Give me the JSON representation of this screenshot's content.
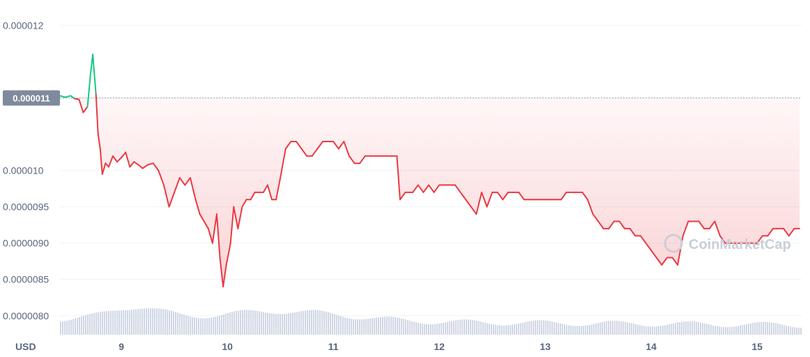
{
  "chart_data": {
    "type": "line",
    "unit": "USD",
    "watermark": "CoinMarketCap",
    "reference_label": "0.000011",
    "reference_value": 1.1e-05,
    "ylim": [
      7.95e-06,
      1.21e-05
    ],
    "xlim": [
      8.42,
      15.42
    ],
    "y_ticks": [
      {
        "label": "0.000012",
        "value": 1.2e-05
      },
      {
        "label": "0.000011",
        "value": 1.1e-05
      },
      {
        "label": "0.000010",
        "value": 1e-05
      },
      {
        "label": "0.0000095",
        "value": 9.5e-06
      },
      {
        "label": "0.0000090",
        "value": 9e-06
      },
      {
        "label": "0.0000085",
        "value": 8.5e-06
      },
      {
        "label": "0.0000080",
        "value": 8e-06
      }
    ],
    "x_ticks": [
      {
        "label": "9",
        "value": 9
      },
      {
        "label": "10",
        "value": 10
      },
      {
        "label": "11",
        "value": 11
      },
      {
        "label": "12",
        "value": 12
      },
      {
        "label": "13",
        "value": 13
      },
      {
        "label": "14",
        "value": 14
      },
      {
        "label": "15",
        "value": 15
      }
    ],
    "colors": {
      "up": "#16c784",
      "down": "#ea3943",
      "volume": "#cfd6e4",
      "grid": "#eff2f5",
      "text": "#58667e"
    },
    "series": [
      {
        "values": [
          [
            8.42,
            1.103e-05
          ],
          [
            8.47,
            1.101e-05
          ],
          [
            8.52,
            1.103e-05
          ],
          [
            8.56,
            1.099e-05
          ],
          [
            8.6,
            1.098e-05
          ],
          [
            8.64,
            1.08e-05
          ],
          [
            8.68,
            1.088e-05
          ],
          [
            8.71,
            1.135e-05
          ],
          [
            8.73,
            1.16e-05
          ],
          [
            8.76,
            1.105e-05
          ],
          [
            8.78,
            1.05e-05
          ],
          [
            8.8,
            1.03e-05
          ],
          [
            8.82,
            9.95e-06
          ],
          [
            8.85,
            1.01e-05
          ],
          [
            8.88,
            1.005e-05
          ],
          [
            8.92,
            1.02e-05
          ],
          [
            8.96,
            1.012e-05
          ],
          [
            9.0,
            1.018e-05
          ],
          [
            9.04,
            1.025e-05
          ],
          [
            9.08,
            1.005e-05
          ],
          [
            9.12,
            1.012e-05
          ],
          [
            9.16,
            1.008e-05
          ],
          [
            9.2,
            1.003e-05
          ],
          [
            9.25,
            1.008e-05
          ],
          [
            9.3,
            1.01e-05
          ],
          [
            9.35,
            1e-05
          ],
          [
            9.4,
            9.8e-06
          ],
          [
            9.45,
            9.5e-06
          ],
          [
            9.5,
            9.7e-06
          ],
          [
            9.55,
            9.9e-06
          ],
          [
            9.6,
            9.8e-06
          ],
          [
            9.65,
            9.9e-06
          ],
          [
            9.7,
            9.6e-06
          ],
          [
            9.74,
            9.4e-06
          ],
          [
            9.78,
            9.3e-06
          ],
          [
            9.82,
            9.2e-06
          ],
          [
            9.86,
            9e-06
          ],
          [
            9.9,
            9.4e-06
          ],
          [
            9.93,
            8.8e-06
          ],
          [
            9.96,
            8.4e-06
          ],
          [
            9.99,
            8.7e-06
          ],
          [
            10.03,
            9e-06
          ],
          [
            10.06,
            9.5e-06
          ],
          [
            10.1,
            9.2e-06
          ],
          [
            10.14,
            9.5e-06
          ],
          [
            10.18,
            9.6e-06
          ],
          [
            10.22,
            9.6e-06
          ],
          [
            10.26,
            9.7e-06
          ],
          [
            10.3,
            9.7e-06
          ],
          [
            10.34,
            9.7e-06
          ],
          [
            10.38,
            9.8e-06
          ],
          [
            10.42,
            9.6e-06
          ],
          [
            10.46,
            9.6e-06
          ],
          [
            10.5,
            9.9e-06
          ],
          [
            10.55,
            1.03e-05
          ],
          [
            10.6,
            1.04e-05
          ],
          [
            10.65,
            1.04e-05
          ],
          [
            10.7,
            1.03e-05
          ],
          [
            10.75,
            1.02e-05
          ],
          [
            10.8,
            1.02e-05
          ],
          [
            10.85,
            1.03e-05
          ],
          [
            10.9,
            1.04e-05
          ],
          [
            10.95,
            1.04e-05
          ],
          [
            11.0,
            1.04e-05
          ],
          [
            11.05,
            1.03e-05
          ],
          [
            11.1,
            1.04e-05
          ],
          [
            11.15,
            1.02e-05
          ],
          [
            11.2,
            1.01e-05
          ],
          [
            11.25,
            1.01e-05
          ],
          [
            11.3,
            1.02e-05
          ],
          [
            11.35,
            1.02e-05
          ],
          [
            11.4,
            1.02e-05
          ],
          [
            11.45,
            1.02e-05
          ],
          [
            11.5,
            1.02e-05
          ],
          [
            11.55,
            1.02e-05
          ],
          [
            11.6,
            1.02e-05
          ],
          [
            11.63,
            9.6e-06
          ],
          [
            11.68,
            9.7e-06
          ],
          [
            11.75,
            9.7e-06
          ],
          [
            11.8,
            9.8e-06
          ],
          [
            11.85,
            9.7e-06
          ],
          [
            11.9,
            9.8e-06
          ],
          [
            11.95,
            9.7e-06
          ],
          [
            12.0,
            9.8e-06
          ],
          [
            12.05,
            9.8e-06
          ],
          [
            12.1,
            9.8e-06
          ],
          [
            12.15,
            9.8e-06
          ],
          [
            12.2,
            9.7e-06
          ],
          [
            12.25,
            9.6e-06
          ],
          [
            12.3,
            9.5e-06
          ],
          [
            12.35,
            9.4e-06
          ],
          [
            12.4,
            9.7e-06
          ],
          [
            12.45,
            9.5e-06
          ],
          [
            12.5,
            9.7e-06
          ],
          [
            12.55,
            9.7e-06
          ],
          [
            12.6,
            9.6e-06
          ],
          [
            12.65,
            9.7e-06
          ],
          [
            12.7,
            9.7e-06
          ],
          [
            12.75,
            9.7e-06
          ],
          [
            12.8,
            9.6e-06
          ],
          [
            12.85,
            9.6e-06
          ],
          [
            12.9,
            9.6e-06
          ],
          [
            12.95,
            9.6e-06
          ],
          [
            13.0,
            9.6e-06
          ],
          [
            13.05,
            9.6e-06
          ],
          [
            13.1,
            9.6e-06
          ],
          [
            13.15,
            9.6e-06
          ],
          [
            13.2,
            9.7e-06
          ],
          [
            13.25,
            9.7e-06
          ],
          [
            13.3,
            9.7e-06
          ],
          [
            13.35,
            9.7e-06
          ],
          [
            13.4,
            9.6e-06
          ],
          [
            13.45,
            9.4e-06
          ],
          [
            13.5,
            9.3e-06
          ],
          [
            13.55,
            9.2e-06
          ],
          [
            13.6,
            9.2e-06
          ],
          [
            13.65,
            9.3e-06
          ],
          [
            13.7,
            9.3e-06
          ],
          [
            13.75,
            9.2e-06
          ],
          [
            13.8,
            9.2e-06
          ],
          [
            13.85,
            9.1e-06
          ],
          [
            13.9,
            9.1e-06
          ],
          [
            13.95,
            9e-06
          ],
          [
            14.0,
            8.9e-06
          ],
          [
            14.05,
            8.8e-06
          ],
          [
            14.1,
            8.7e-06
          ],
          [
            14.15,
            8.8e-06
          ],
          [
            14.2,
            8.8e-06
          ],
          [
            14.25,
            8.7e-06
          ],
          [
            14.3,
            9.1e-06
          ],
          [
            14.35,
            9.3e-06
          ],
          [
            14.4,
            9.3e-06
          ],
          [
            14.45,
            9.3e-06
          ],
          [
            14.5,
            9.2e-06
          ],
          [
            14.55,
            9.2e-06
          ],
          [
            14.6,
            9.3e-06
          ],
          [
            14.65,
            9.1e-06
          ],
          [
            14.7,
            9e-06
          ],
          [
            14.75,
            9e-06
          ],
          [
            14.8,
            9e-06
          ],
          [
            14.85,
            9e-06
          ],
          [
            14.9,
            9e-06
          ],
          [
            14.95,
            9e-06
          ],
          [
            15.0,
            9e-06
          ],
          [
            15.05,
            9.1e-06
          ],
          [
            15.1,
            9.1e-06
          ],
          [
            15.15,
            9.2e-06
          ],
          [
            15.2,
            9.2e-06
          ],
          [
            15.25,
            9.2e-06
          ],
          [
            15.3,
            9.1e-06
          ],
          [
            15.35,
            9.2e-06
          ],
          [
            15.4,
            9.2e-06
          ]
        ]
      }
    ]
  }
}
